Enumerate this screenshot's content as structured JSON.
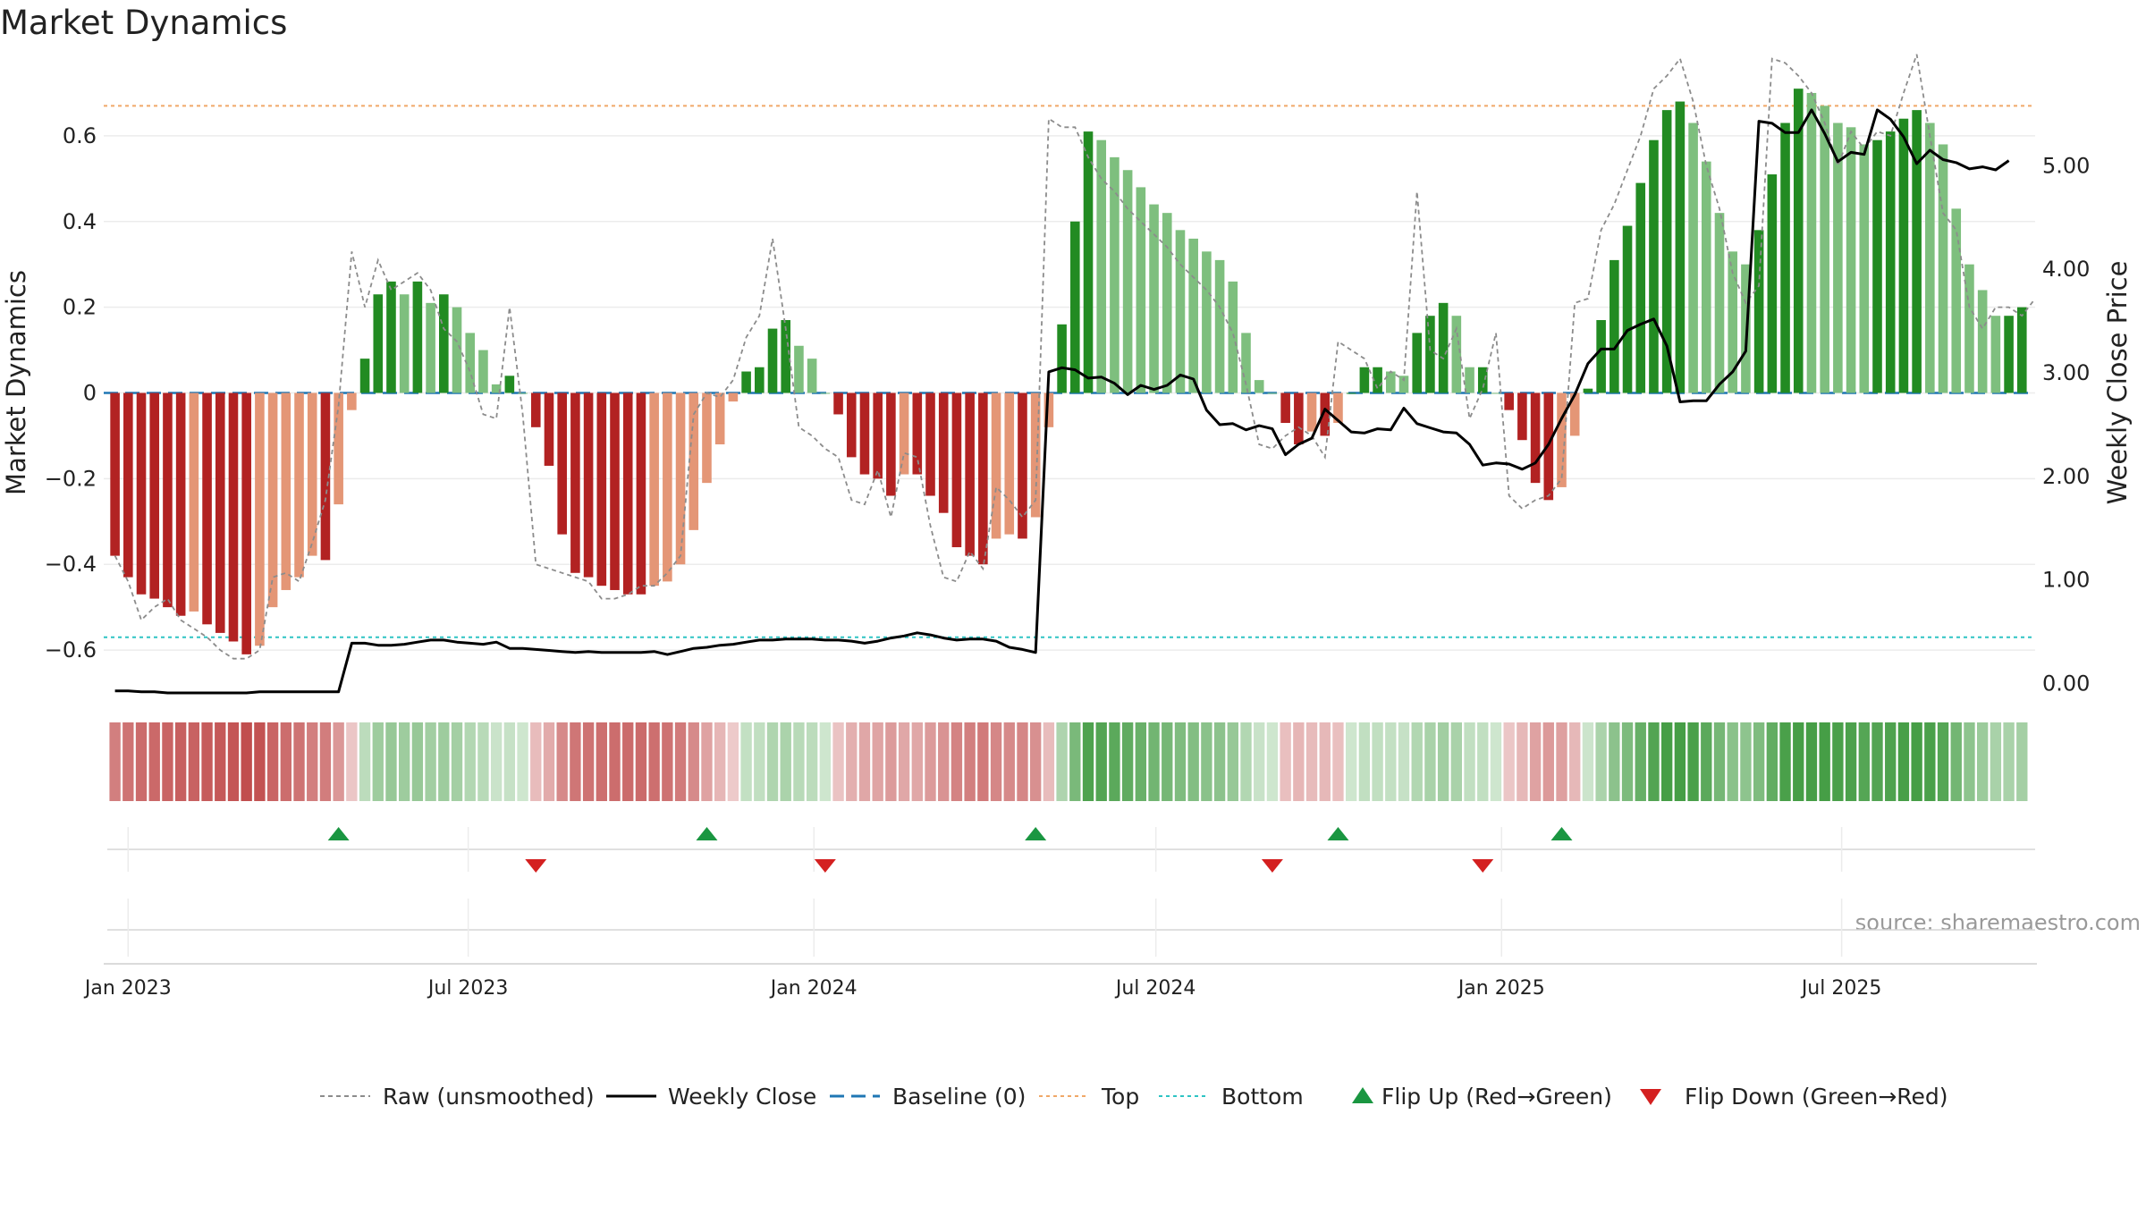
{
  "chart_data": {
    "type": "bar",
    "title": "Market Dynamics",
    "ylabel": "Market Dynamics",
    "y2label": "Weekly Close Price",
    "source": "source: sharemaestro.com",
    "ylim": [
      -0.7,
      0.75
    ],
    "y2lim": [
      -0.1,
      5.9
    ],
    "yticks": [
      {
        "v": 0.6,
        "label": "0.6"
      },
      {
        "v": 0.4,
        "label": "0.4"
      },
      {
        "v": 0.2,
        "label": "0.2"
      },
      {
        "v": 0,
        "label": "0"
      },
      {
        "v": -0.2,
        "label": "−0.2"
      },
      {
        "v": -0.4,
        "label": "−0.4"
      },
      {
        "v": -0.6,
        "label": "−0.6"
      }
    ],
    "y2ticks": [
      {
        "v": 5,
        "label": "5.00"
      },
      {
        "v": 4,
        "label": "4.00"
      },
      {
        "v": 3,
        "label": "3.00"
      },
      {
        "v": 2,
        "label": "2.00"
      },
      {
        "v": 1,
        "label": "1.00"
      },
      {
        "v": 0,
        "label": "0.00"
      }
    ],
    "xlim": [
      "2022-12-19",
      "2025-10-12"
    ],
    "start_date": "2022-12-25",
    "week_days": 7,
    "xticks": [
      {
        "date": "2023-01-01",
        "label": "Jan 2023"
      },
      {
        "date": "2023-07-01",
        "label": "Jul 2023"
      },
      {
        "date": "2024-01-01",
        "label": "Jan 2024"
      },
      {
        "date": "2024-07-01",
        "label": "Jul 2024"
      },
      {
        "date": "2025-01-01",
        "label": "Jan 2025"
      },
      {
        "date": "2025-07-01",
        "label": "Jul 2025"
      }
    ],
    "reference_lines": {
      "baseline": 0,
      "top": 0.67,
      "bottom": -0.57
    },
    "colors": {
      "strong_red": "#b22222",
      "light_red": "#e49676",
      "strong_green": "#228b22",
      "light_green": "#7ebf7e",
      "raw": "#8c8c8c",
      "close": "#000000",
      "baseline": "#1f77b4",
      "top": "#f0a868",
      "bottom": "#2ec4c4",
      "flip_up": "#1a9641",
      "flip_down": "#d42020"
    },
    "series": [
      {
        "name": "Market Dynamics",
        "values": [
          -0.38,
          -0.43,
          -0.47,
          -0.48,
          -0.5,
          -0.52,
          -0.51,
          -0.54,
          -0.56,
          -0.58,
          -0.61,
          -0.59,
          -0.5,
          -0.46,
          -0.43,
          -0.38,
          -0.39,
          -0.26,
          -0.04,
          0.08,
          0.23,
          0.26,
          0.23,
          0.26,
          0.21,
          0.23,
          0.2,
          0.14,
          0.1,
          0.02,
          0.04,
          0,
          -0.08,
          -0.17,
          -0.33,
          -0.42,
          -0.43,
          -0.45,
          -0.46,
          -0.47,
          -0.47,
          -0.45,
          -0.44,
          -0.4,
          -0.32,
          -0.21,
          -0.12,
          -0.02,
          0.05,
          0.06,
          0.15,
          0.17,
          0.11,
          0.08,
          0,
          -0.05,
          -0.15,
          -0.19,
          -0.2,
          -0.24,
          -0.19,
          -0.19,
          -0.24,
          -0.28,
          -0.36,
          -0.38,
          -0.4,
          -0.34,
          -0.33,
          -0.34,
          -0.29,
          -0.08,
          0.16,
          0.4,
          0.61,
          0.59,
          0.55,
          0.52,
          0.48,
          0.44,
          0.42,
          0.38,
          0.36,
          0.33,
          0.31,
          0.26,
          0.14,
          0.03,
          0,
          -0.07,
          -0.12,
          -0.09,
          -0.1,
          -0.07,
          0,
          0.06,
          0.06,
          0.05,
          0.04,
          0.14,
          0.18,
          0.21,
          0.18,
          0.06,
          0.06,
          0,
          -0.04,
          -0.11,
          -0.21,
          -0.25,
          -0.22,
          -0.1,
          0.01,
          0.17,
          0.31,
          0.39,
          0.49,
          0.59,
          0.66,
          0.68,
          0.63,
          0.54,
          0.42,
          0.33,
          0.3,
          0.38,
          0.51,
          0.63,
          0.71,
          0.7,
          0.67,
          0.63,
          0.62,
          0.58,
          0.59,
          0.61,
          0.64,
          0.66,
          0.63,
          0.58,
          0.43,
          0.3,
          0.24,
          0.18,
          0.18,
          0.2
        ]
      },
      {
        "name": "Raw (unsmoothed)",
        "values": [
          -0.38,
          -0.44,
          -0.53,
          -0.5,
          -0.48,
          -0.53,
          -0.55,
          -0.57,
          -0.6,
          -0.62,
          -0.62,
          -0.6,
          -0.43,
          -0.42,
          -0.44,
          -0.35,
          -0.25,
          -0.03,
          0.33,
          0.2,
          0.31,
          0.24,
          0.26,
          0.28,
          0.24,
          0.15,
          0.12,
          0.05,
          -0.05,
          -0.06,
          0.2,
          -0.05,
          -0.4,
          -0.41,
          -0.42,
          -0.43,
          -0.44,
          -0.48,
          -0.48,
          -0.47,
          -0.45,
          -0.45,
          -0.42,
          -0.38,
          -0.05,
          0,
          -0.01,
          0.03,
          0.13,
          0.18,
          0.36,
          0.15,
          -0.08,
          -0.1,
          -0.13,
          -0.15,
          -0.25,
          -0.26,
          -0.18,
          -0.29,
          -0.14,
          -0.15,
          -0.31,
          -0.43,
          -0.44,
          -0.37,
          -0.41,
          -0.22,
          -0.25,
          -0.29,
          -0.25,
          0.64,
          0.62,
          0.62,
          0.55,
          0.5,
          0.47,
          0.43,
          0.4,
          0.37,
          0.34,
          0.3,
          0.27,
          0.24,
          0.2,
          0.14,
          0.02,
          -0.12,
          -0.13,
          -0.1,
          -0.08,
          -0.1,
          -0.15,
          0.12,
          0.1,
          0.08,
          0.01,
          0.05,
          0.03,
          0.47,
          0.1,
          0.08,
          0.15,
          -0.06,
          0.01,
          0.14,
          -0.24,
          -0.27,
          -0.25,
          -0.24,
          -0.2,
          0.21,
          0.22,
          0.38,
          0.44,
          0.52,
          0.6,
          0.71,
          0.74,
          0.78,
          0.68,
          0.53,
          0.43,
          0.28,
          0.21,
          0.25,
          0.78,
          0.77,
          0.74,
          0.7,
          0.63,
          0.53,
          0.61,
          0.57,
          0.61,
          0.6,
          0.7,
          0.79,
          0.6,
          0.42,
          0.38,
          0.2,
          0.15,
          0.2,
          0.2,
          0.18,
          0.22
        ]
      },
      {
        "name": "Weekly Close",
        "values": [
          -0.08,
          -0.08,
          -0.09,
          -0.09,
          -0.1,
          -0.1,
          -0.1,
          -0.1,
          -0.1,
          -0.1,
          -0.1,
          -0.09,
          -0.09,
          -0.09,
          -0.09,
          -0.09,
          -0.09,
          -0.09,
          0.38,
          0.38,
          0.36,
          0.36,
          0.37,
          0.39,
          0.41,
          0.41,
          0.39,
          0.38,
          0.37,
          0.39,
          0.33,
          0.33,
          0.32,
          0.31,
          0.3,
          0.29,
          0.3,
          0.29,
          0.29,
          0.29,
          0.29,
          0.3,
          0.27,
          0.3,
          0.33,
          0.34,
          0.36,
          0.37,
          0.39,
          0.41,
          0.41,
          0.42,
          0.42,
          0.42,
          0.41,
          0.41,
          0.4,
          0.38,
          0.4,
          0.43,
          0.45,
          0.48,
          0.46,
          0.43,
          0.41,
          0.42,
          0.42,
          0.4,
          0.34,
          0.32,
          0.29,
          3.0,
          3.04,
          3.02,
          2.94,
          2.95,
          2.89,
          2.78,
          2.87,
          2.83,
          2.87,
          2.97,
          2.93,
          2.63,
          2.49,
          2.5,
          2.44,
          2.48,
          2.45,
          2.2,
          2.3,
          2.36,
          2.64,
          2.53,
          2.42,
          2.41,
          2.45,
          2.44,
          2.65,
          2.5,
          2.46,
          2.42,
          2.41,
          2.3,
          2.1,
          2.12,
          2.11,
          2.06,
          2.12,
          2.3,
          2.55,
          2.78,
          3.08,
          3.22,
          3.22,
          3.4,
          3.46,
          3.51,
          3.25,
          2.71,
          2.72,
          2.72,
          2.88,
          3.0,
          3.2,
          5.42,
          5.4,
          5.31,
          5.31,
          5.53,
          5.3,
          5.03,
          5.12,
          5.1,
          5.53,
          5.44,
          5.27,
          5.01,
          5.14,
          5.05,
          5.02,
          4.96,
          4.98,
          4.95,
          5.04
        ]
      }
    ],
    "flips_up": [
      "2023-04-23",
      "2023-11-05",
      "2024-04-28",
      "2024-10-06",
      "2025-02-02"
    ],
    "flips_down": [
      "2023-08-06",
      "2024-01-07",
      "2024-09-01",
      "2024-12-22"
    ],
    "legend": {
      "position": "bottom-center",
      "items": [
        {
          "key": "raw",
          "label": "Raw (unsmoothed)"
        },
        {
          "key": "close",
          "label": "Weekly Close"
        },
        {
          "key": "baseline",
          "label": "Baseline (0)"
        },
        {
          "key": "top",
          "label": "Top"
        },
        {
          "key": "bottom",
          "label": "Bottom"
        },
        {
          "key": "flip_up",
          "label": "Flip Up (Red→Green)"
        },
        {
          "key": "flip_down",
          "label": "Flip Down (Green→Red)"
        }
      ]
    }
  }
}
